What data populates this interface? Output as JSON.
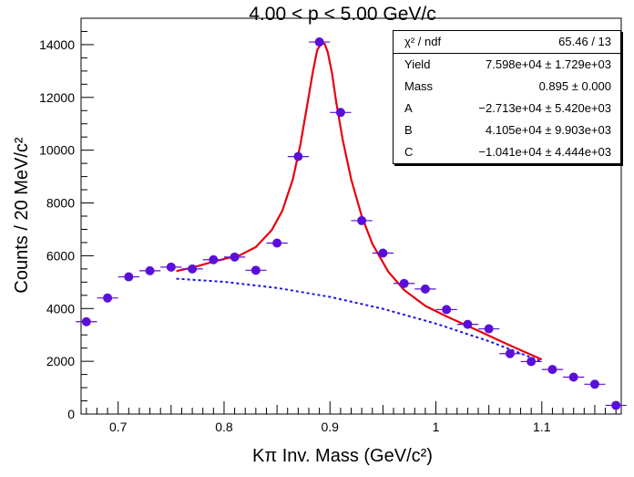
{
  "chart_data": {
    "type": "scatter",
    "title": "4.00 < p  < 5.00 GeV/c",
    "xlabel": "Kπ Inv. Mass (GeV/c²)",
    "ylabel": "Counts / 20 MeV/c²",
    "xlim": [
      0.665,
      1.175
    ],
    "ylim": [
      0,
      15000
    ],
    "x_ticks": [
      0.7,
      0.8,
      0.9,
      1.0,
      1.1
    ],
    "x_tick_labels": [
      "0.7",
      "0.8",
      "0.9",
      "1",
      "1.1"
    ],
    "y_ticks": [
      0,
      2000,
      4000,
      6000,
      8000,
      10000,
      12000,
      14000
    ],
    "y_tick_labels": [
      "0",
      "2000",
      "4000",
      "6000",
      "8000",
      "10000",
      "12000",
      "14000"
    ],
    "grid": false,
    "series": [
      {
        "kind": "points-with-x-error",
        "color": "#5a0fd9",
        "x_error": 0.01,
        "x": [
          0.67,
          0.69,
          0.71,
          0.73,
          0.75,
          0.77,
          0.79,
          0.81,
          0.83,
          0.85,
          0.87,
          0.89,
          0.91,
          0.93,
          0.95,
          0.97,
          0.99,
          1.01,
          1.03,
          1.05,
          1.07,
          1.09,
          1.11,
          1.13,
          1.15,
          1.17
        ],
        "y": [
          3500,
          4400,
          5200,
          5430,
          5570,
          5500,
          5850,
          5950,
          5450,
          6480,
          9760,
          14100,
          11430,
          7330,
          6100,
          4950,
          4740,
          3960,
          3400,
          3230,
          2290,
          1990,
          1690,
          1400,
          1130,
          330
        ]
      },
      {
        "kind": "fit-curve",
        "color": "#e8000b",
        "x": [
          0.755,
          0.77,
          0.785,
          0.8,
          0.815,
          0.83,
          0.845,
          0.855,
          0.865,
          0.872,
          0.878,
          0.884,
          0.888,
          0.892,
          0.895,
          0.898,
          0.902,
          0.906,
          0.912,
          0.92,
          0.93,
          0.94,
          0.955,
          0.97,
          0.99,
          1.01,
          1.04,
          1.07,
          1.1
        ],
        "y": [
          5420,
          5550,
          5720,
          5880,
          6020,
          6330,
          6970,
          7700,
          8900,
          10200,
          11600,
          13000,
          13800,
          14050,
          14030,
          13700,
          12900,
          11800,
          10400,
          8900,
          7500,
          6450,
          5400,
          4700,
          4100,
          3700,
          3160,
          2600,
          2070
        ]
      },
      {
        "kind": "background-curve",
        "color": "#1a10e6",
        "dashed": true,
        "x": [
          0.755,
          0.8,
          0.85,
          0.9,
          0.95,
          1.0,
          1.05,
          1.1
        ],
        "y": [
          5130,
          5010,
          4780,
          4440,
          3990,
          3430,
          2760,
          1990
        ]
      }
    ],
    "stats_box": {
      "rows": [
        {
          "label": "χ² / ndf",
          "value": "65.46 / 13"
        },
        {
          "label": "Yield",
          "value": "7.598e+04 ± 1.729e+03"
        },
        {
          "label": "Mass",
          "value": "0.895 ± 0.000"
        },
        {
          "label": "A",
          "value": "−2.713e+04 ± 5.420e+03"
        },
        {
          "label": "B",
          "value": "4.105e+04 ± 9.903e+03"
        },
        {
          "label": "C",
          "value": "−1.041e+04 ± 4.444e+03"
        }
      ]
    }
  }
}
